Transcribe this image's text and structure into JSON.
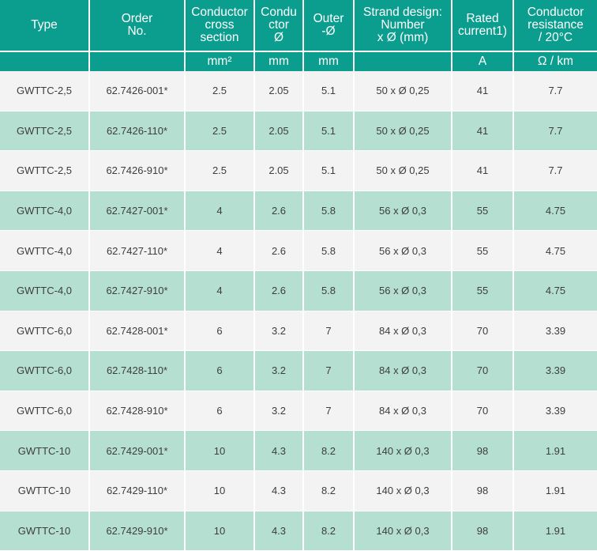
{
  "colors": {
    "header_bg": "#0b9e8e",
    "row_light": "#f3f3f3",
    "row_green": "#b5e0d1",
    "text": "#3d3d3d"
  },
  "header": [
    "Type",
    "Order\nNo.",
    "Conductor\ncross\nsection",
    "Condu\nctor\nØ",
    "Outer\n-Ø",
    "Strand design:\nNumber\nx Ø (mm)",
    "Rated\ncurrent1)",
    "Conductor\nresistance\n/ 20°C"
  ],
  "units": [
    "",
    "",
    "mm²",
    "mm",
    "mm",
    "",
    "A",
    "Ω / km"
  ],
  "rows": [
    [
      "GWTTC-2,5",
      "62.7426-001*",
      "2.5",
      "2.05",
      "5.1",
      "50 x Ø 0,25",
      "41",
      "7.7"
    ],
    [
      "GWTTC-2,5",
      "62.7426-110*",
      "2.5",
      "2.05",
      "5.1",
      "50 x Ø 0,25",
      "41",
      "7.7"
    ],
    [
      "GWTTC-2,5",
      "62.7426-910*",
      "2.5",
      "2.05",
      "5.1",
      "50 x Ø 0,25",
      "41",
      "7.7"
    ],
    [
      "GWTTC-4,0",
      "62.7427-001*",
      "4",
      "2.6",
      "5.8",
      "56 x Ø 0,3",
      "55",
      "4.75"
    ],
    [
      "GWTTC-4,0",
      "62.7427-110*",
      "4",
      "2.6",
      "5.8",
      "56 x Ø 0,3",
      "55",
      "4.75"
    ],
    [
      "GWTTC-4,0",
      "62.7427-910*",
      "4",
      "2.6",
      "5.8",
      "56 x Ø 0,3",
      "55",
      "4.75"
    ],
    [
      "GWTTC-6,0",
      "62.7428-001*",
      "6",
      "3.2",
      "7",
      "84 x Ø 0,3",
      "70",
      "3.39"
    ],
    [
      "GWTTC-6,0",
      "62.7428-110*",
      "6",
      "3.2",
      "7",
      "84 x Ø 0,3",
      "70",
      "3.39"
    ],
    [
      "GWTTC-6,0",
      "62.7428-910*",
      "6",
      "3.2",
      "7",
      "84 x Ø 0,3",
      "70",
      "3.39"
    ],
    [
      "GWTTC-10",
      "62.7429-001*",
      "10",
      "4.3",
      "8.2",
      "140 x Ø 0,3",
      "98",
      "1.91"
    ],
    [
      "GWTTC-10",
      "62.7429-110*",
      "10",
      "4.3",
      "8.2",
      "140 x Ø 0,3",
      "98",
      "1.91"
    ],
    [
      "GWTTC-10",
      "62.7429-910*",
      "10",
      "4.3",
      "8.2",
      "140 x Ø 0,3",
      "98",
      "1.91"
    ]
  ]
}
